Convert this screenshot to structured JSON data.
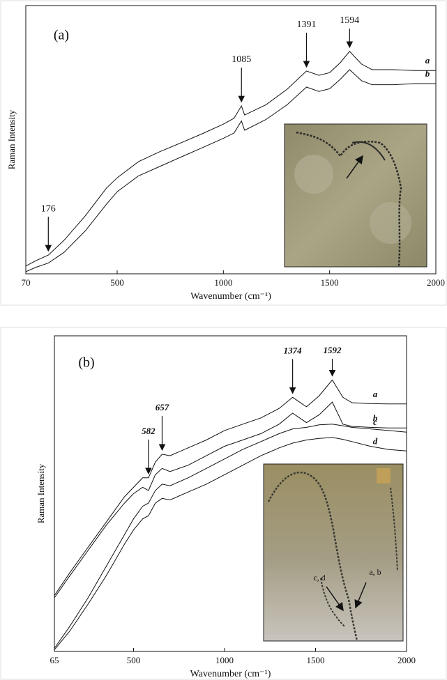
{
  "chart_data": [
    {
      "type": "line",
      "panel_label": "(a)",
      "x_label": "Wavenumber (cm⁻¹)",
      "y_label": "Raman Intensity",
      "x": [
        70,
        120,
        176,
        250,
        350,
        450,
        500,
        600,
        700,
        800,
        900,
        1000,
        1050,
        1085,
        1100,
        1200,
        1300,
        1391,
        1450,
        1500,
        1550,
        1594,
        1650,
        1700,
        1800,
        1900,
        2000
      ],
      "series": [
        {
          "name": "a",
          "color": "#111111",
          "values": [
            2.9,
            5,
            7,
            12.5,
            21.6,
            32,
            35.8,
            41.8,
            45.5,
            48.8,
            52.2,
            55.8,
            58,
            62.6,
            59.2,
            63,
            68.8,
            75.6,
            74,
            75,
            78.7,
            82.9,
            78.2,
            76.1,
            76.1,
            75.8,
            75.8
          ]
        },
        {
          "name": "b",
          "color": "#111111",
          "values": [
            0.8,
            2.5,
            4,
            8,
            16,
            26,
            30.6,
            36.5,
            40,
            43.5,
            47,
            50.5,
            52.5,
            57,
            53.5,
            57.5,
            63,
            69.6,
            68,
            69,
            72.5,
            76.1,
            72,
            70.5,
            70.5,
            70.9,
            70.9
          ]
        }
      ],
      "annotations": [
        176,
        1085,
        1391,
        1594
      ],
      "xlim": [
        70,
        2000
      ],
      "xticks": [
        70,
        500,
        1000,
        1500,
        2000
      ],
      "ylim": [
        0,
        100
      ],
      "grid": false
    },
    {
      "type": "line",
      "panel_label": "(b)",
      "x_label": "Wavenumber (cm⁻¹)",
      "y_label": "Raman Intensity",
      "x": [
        65,
        150,
        250,
        350,
        450,
        500,
        550,
        582,
        620,
        657,
        700,
        800,
        900,
        1000,
        1100,
        1200,
        1300,
        1374,
        1450,
        1520,
        1592,
        1650,
        1700,
        1800,
        1900,
        2000
      ],
      "series": [
        {
          "name": "a",
          "color": "#111111",
          "values": [
            17.7,
            25,
            33,
            41,
            49,
            52,
            55,
            55,
            60,
            62.5,
            62,
            64.5,
            67,
            70,
            72,
            74,
            77,
            80.5,
            77.5,
            81,
            86,
            80.5,
            78.8,
            78.5,
            78.4,
            78.4
          ]
        },
        {
          "name": "b",
          "color": "#111111",
          "values": [
            17,
            24,
            32,
            40,
            47,
            50,
            52,
            51,
            56,
            58,
            57,
            59,
            62,
            65,
            67,
            69,
            72,
            75.5,
            72.5,
            75,
            79,
            72,
            71.3,
            71,
            70.8,
            70.8
          ]
        },
        {
          "name": "c",
          "color": "#111111",
          "values": [
            1,
            8,
            17,
            27,
            37,
            42,
            46,
            47,
            51,
            53,
            52.5,
            55,
            58,
            61,
            64,
            66.5,
            69,
            70.5,
            71,
            71.8,
            72,
            71.5,
            71,
            70.5,
            70,
            69.5
          ]
        },
        {
          "name": "d",
          "color": "#111111",
          "values": [
            0.5,
            6.5,
            15,
            24,
            34,
            38.5,
            42,
            43,
            47,
            48.5,
            48,
            50.5,
            53,
            56,
            59,
            62,
            64.5,
            66,
            67,
            67.5,
            67.8,
            67.2,
            66.5,
            65,
            64,
            63.5
          ]
        }
      ],
      "annotations": [
        582,
        657,
        1374,
        1592
      ],
      "inset_labels": [
        "c, d",
        "a, b"
      ],
      "xlim": [
        65,
        2000
      ],
      "xticks": [
        65,
        500,
        1000,
        1500,
        2000
      ],
      "ylim": [
        0,
        100
      ],
      "grid": false
    }
  ]
}
